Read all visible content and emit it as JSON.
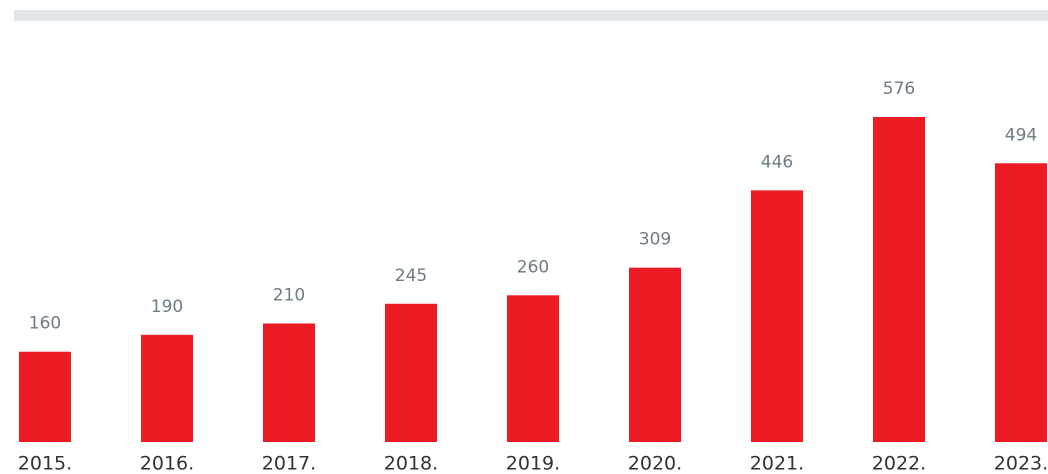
{
  "chart_data": {
    "type": "bar",
    "categories": [
      "2015.",
      "2016.",
      "2017.",
      "2018.",
      "2019.",
      "2020.",
      "2021.",
      "2022.",
      "2023."
    ],
    "values": [
      160,
      190,
      210,
      245,
      260,
      309,
      446,
      576,
      494
    ],
    "color": "#ed1c24"
  }
}
